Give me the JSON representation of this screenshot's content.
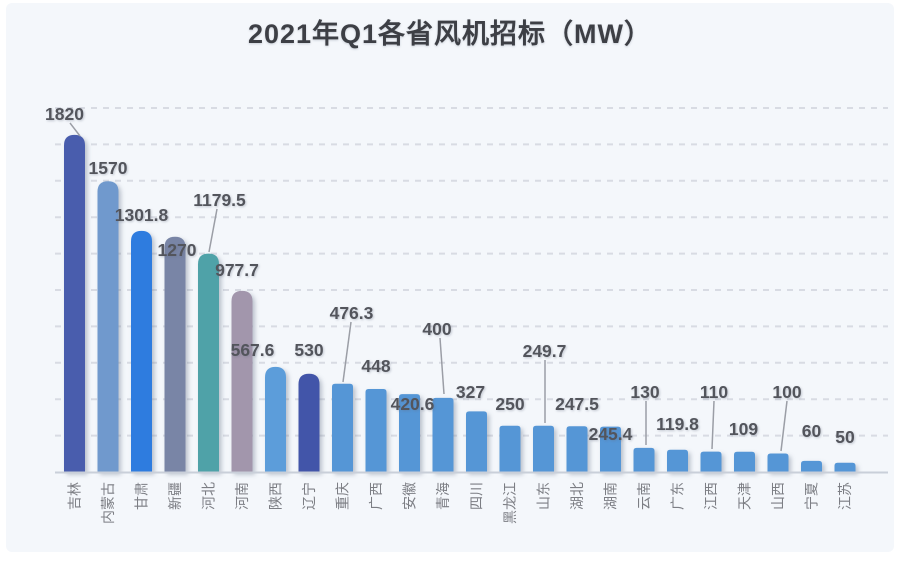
{
  "page": {
    "title": "2021年Q1各省风机招标（MW）"
  },
  "chart_data": {
    "type": "bar",
    "title": "2021年Q1各省风机招标（MW）",
    "unit": "MW",
    "categories": [
      "吉林",
      "内蒙古",
      "甘肃",
      "新疆",
      "河北",
      "河南",
      "陕西",
      "辽宁",
      "重庆",
      "广西",
      "安徽",
      "青海",
      "四川",
      "黑龙江",
      "山东",
      "湖北",
      "湖南",
      "云南",
      "广东",
      "江西",
      "天津",
      "山西",
      "宁夏",
      "江苏"
    ],
    "values": [
      1820,
      1570,
      1301.8,
      1270,
      1179.5,
      977.7,
      567.6,
      530,
      476.3,
      448,
      420.6,
      400,
      327,
      250,
      249.7,
      247.5,
      245.4,
      130,
      119.8,
      110,
      109,
      100,
      60,
      50
    ],
    "data_labels_visible": true,
    "xlabel": "",
    "ylabel": "",
    "ylim": [
      0,
      2000
    ],
    "grid_interval": 200,
    "grid_style": "dashed",
    "y_axis_tick_labels_visible": false,
    "legend": "none",
    "bar_colors": [
      "#4a5dad",
      "#6f99cd",
      "#2e7cdf",
      "#7985a6",
      "#4fa2a8",
      "#a296ac",
      "#5b9dda",
      "#4254a9",
      "#5596d6",
      "#5596d6",
      "#5596d6",
      "#5596d6",
      "#5596d6",
      "#5596d6",
      "#5596d6",
      "#5596d6",
      "#5596d6",
      "#5596d6",
      "#5596d6",
      "#5596d6",
      "#5596d6",
      "#5596d6",
      "#5596d6",
      "#5596d6"
    ],
    "background_color": "#f4f7fb",
    "grid_color": "#d8dbe3",
    "value_label_color": "#53555c",
    "category_label_color": "#7c7e84",
    "title_color": "#3d3f45"
  }
}
